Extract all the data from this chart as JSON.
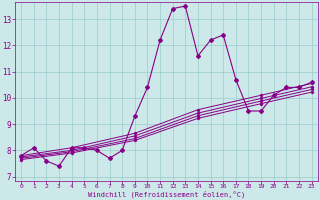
{
  "xlabel": "Windchill (Refroidissement éolien,°C)",
  "background_color": "#cce8e8",
  "line_color": "#880088",
  "grid_color": "#99cccc",
  "x_min": -0.5,
  "x_max": 23.5,
  "y_min": 6.85,
  "y_max": 13.65,
  "x_ticks": [
    0,
    1,
    2,
    3,
    4,
    5,
    6,
    7,
    8,
    9,
    10,
    11,
    12,
    13,
    14,
    15,
    16,
    17,
    18,
    19,
    20,
    21,
    22,
    23
  ],
  "y_ticks": [
    7,
    8,
    9,
    10,
    11,
    12,
    13
  ],
  "series1_x": [
    0,
    1,
    2,
    3,
    4,
    5,
    6,
    7,
    8,
    9,
    10,
    11,
    12,
    13,
    14,
    15,
    16,
    17,
    18,
    19,
    20,
    21,
    22,
    23
  ],
  "series1_y": [
    7.8,
    8.1,
    7.6,
    7.4,
    8.1,
    8.1,
    8.0,
    7.7,
    8.0,
    9.3,
    10.4,
    12.2,
    13.4,
    13.5,
    11.6,
    12.2,
    12.4,
    10.7,
    9.5,
    9.5,
    10.1,
    10.4,
    10.4,
    10.6
  ],
  "series2_x": [
    0,
    4,
    9,
    14,
    19,
    23
  ],
  "series2_y": [
    7.8,
    8.1,
    8.65,
    9.55,
    10.1,
    10.55
  ],
  "series3_x": [
    0,
    4,
    9,
    14,
    19,
    23
  ],
  "series3_y": [
    7.75,
    8.0,
    8.55,
    9.42,
    9.98,
    10.42
  ],
  "series4_x": [
    0,
    4,
    9,
    14,
    19,
    23
  ],
  "series4_y": [
    7.7,
    7.95,
    8.45,
    9.32,
    9.88,
    10.32
  ],
  "series5_x": [
    0,
    4,
    9,
    14,
    19,
    23
  ],
  "series5_y": [
    7.65,
    7.9,
    8.38,
    9.22,
    9.78,
    10.22
  ]
}
